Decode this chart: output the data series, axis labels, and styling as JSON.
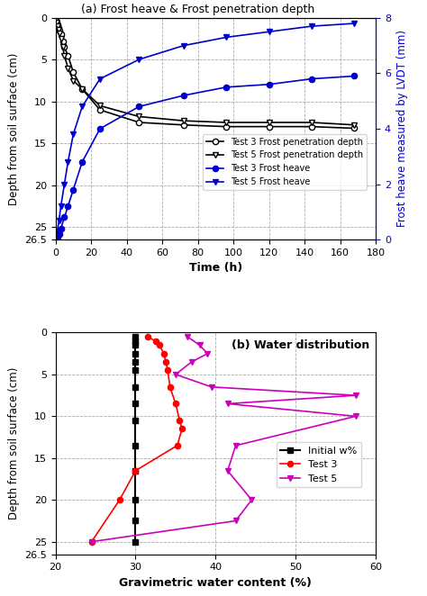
{
  "panel_a": {
    "title": "(a) Frost heave & Frost penetration depth",
    "xlabel": "Time (h)",
    "ylabel_left": "Depth from soil surface (cm)",
    "ylabel_right": "Frost heave measured by LVDT (mm)",
    "xlim": [
      0,
      180
    ],
    "ylim_left": [
      26.5,
      0
    ],
    "ylim_right": [
      0,
      8
    ],
    "xticks": [
      0,
      20,
      40,
      60,
      80,
      100,
      120,
      140,
      160,
      180
    ],
    "yticks_left": [
      0,
      5,
      10,
      15,
      20,
      25,
      26.5
    ],
    "yticks_right": [
      0,
      2,
      4,
      6,
      8
    ],
    "test3_penetration_time": [
      0.3,
      0.6,
      1.0,
      1.5,
      2,
      3,
      4,
      5,
      7,
      10,
      15,
      25,
      47,
      72,
      96,
      120,
      144,
      168
    ],
    "test3_penetration_depth": [
      0.3,
      0.6,
      0.9,
      1.2,
      1.5,
      2.0,
      2.8,
      3.5,
      4.5,
      6.5,
      8.5,
      11.0,
      12.5,
      12.8,
      13.0,
      13.0,
      13.0,
      13.2
    ],
    "test5_penetration_time": [
      0.3,
      0.6,
      1.0,
      1.5,
      2,
      3,
      4,
      5,
      7,
      10,
      15,
      25,
      47,
      72,
      96,
      120,
      144,
      168
    ],
    "test5_penetration_depth": [
      0.3,
      0.6,
      1.0,
      1.4,
      1.8,
      2.5,
      3.5,
      4.5,
      6.0,
      7.5,
      8.5,
      10.5,
      11.8,
      12.3,
      12.5,
      12.5,
      12.5,
      12.8
    ],
    "test3_heave_time": [
      0,
      0.5,
      1,
      2,
      3,
      5,
      7,
      10,
      15,
      25,
      47,
      72,
      96,
      120,
      144,
      168
    ],
    "test3_heave": [
      0,
      0.05,
      0.1,
      0.2,
      0.4,
      0.8,
      1.2,
      1.8,
      2.8,
      4.0,
      4.8,
      5.2,
      5.5,
      5.6,
      5.8,
      5.9
    ],
    "test5_heave_time": [
      0,
      0.5,
      1,
      2,
      3,
      5,
      7,
      10,
      15,
      25,
      47,
      72,
      96,
      120,
      144,
      168
    ],
    "test5_heave": [
      0,
      0.1,
      0.3,
      0.7,
      1.2,
      2.0,
      2.8,
      3.8,
      4.8,
      5.8,
      6.5,
      7.0,
      7.3,
      7.5,
      7.7,
      7.8
    ],
    "legend_labels": [
      "Test 3 Frost penetration depth",
      "Test 5 Frost penetration depth",
      "Test 3 Frost heave",
      "Test 5 Frost heave"
    ],
    "black_color": "#000000",
    "blue_color": "#0000cc"
  },
  "panel_b": {
    "title": "(b) Water distribution",
    "xlabel": "Gravimetric water content (%)",
    "ylabel": "Depth from soil surface (cm)",
    "xlim": [
      20,
      60
    ],
    "ylim": [
      26.5,
      0
    ],
    "xticks": [
      20,
      30,
      40,
      50,
      60
    ],
    "initial_w": [
      30,
      30,
      30,
      30,
      30,
      30,
      30,
      30,
      30,
      30,
      30,
      30,
      30,
      30
    ],
    "initial_depth": [
      0.5,
      1.0,
      1.5,
      2.5,
      3.5,
      4.5,
      6.5,
      8.5,
      10.5,
      13.5,
      16.5,
      20.0,
      22.5,
      25.0
    ],
    "test3_w": [
      31.5,
      32.5,
      33.0,
      33.5,
      33.8,
      34.0,
      34.3,
      35.0,
      35.5,
      35.8,
      35.2,
      30.0,
      28.0,
      24.5
    ],
    "test3_depth": [
      0.5,
      1.0,
      1.5,
      2.5,
      3.5,
      4.5,
      6.5,
      8.5,
      10.5,
      11.5,
      13.5,
      16.5,
      20.0,
      25.0
    ],
    "test5_w": [
      36.5,
      38.0,
      39.0,
      37.0,
      35.0,
      39.5,
      57.5,
      41.5,
      57.5,
      42.5,
      41.5,
      44.5,
      42.5,
      24.5
    ],
    "test5_depth": [
      0.5,
      1.5,
      2.5,
      3.5,
      5.0,
      6.5,
      7.5,
      8.5,
      10.0,
      13.5,
      16.5,
      20.0,
      22.5,
      25.0
    ],
    "legend_labels": [
      "Initial w%",
      "Test 3",
      "Test 5"
    ],
    "black_color": "#000000",
    "red_color": "#ff0000",
    "magenta_color": "#cc00bb"
  }
}
